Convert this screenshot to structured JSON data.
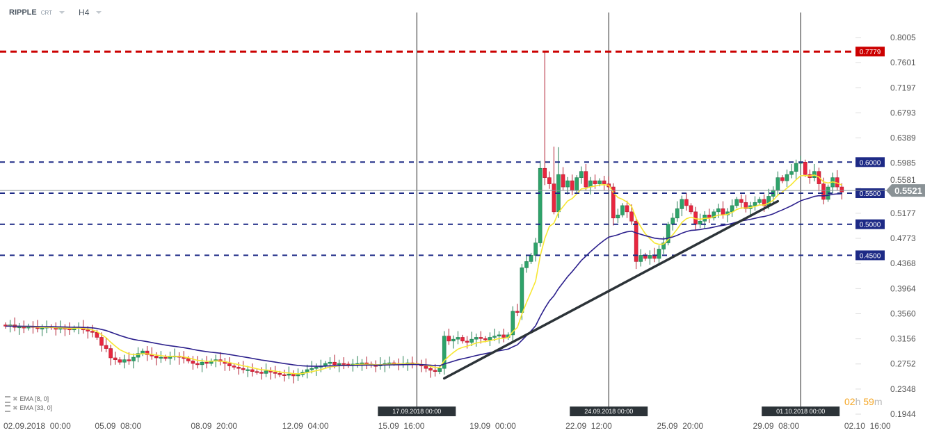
{
  "header": {
    "symbol": "RIPPLE",
    "category": "CRT",
    "timeframe": "H4"
  },
  "timer": {
    "hours": "02",
    "hours_unit": "h",
    "minutes": "59",
    "minutes_unit": "m"
  },
  "indicators": [
    {
      "label": "EMA",
      "params": "[8, 0]",
      "color": "#f7e733",
      "period": 8
    },
    {
      "label": "EMA",
      "params": "[33, 0]",
      "color": "#2b1f8c",
      "period": 33
    }
  ],
  "colors": {
    "up": "#2ea36a",
    "down": "#e8263f",
    "support": "#1d2a86",
    "resistance": "#cc0000",
    "trendline": "#2c3338",
    "current": "#8a9296"
  },
  "chart_data": {
    "type": "candlestick",
    "start": "2018-09-02 00:00",
    "interval": "H4",
    "closes": [
      0.336,
      0.338,
      0.334,
      0.335,
      0.333,
      0.336,
      0.334,
      0.332,
      0.333,
      0.335,
      0.334,
      0.331,
      0.333,
      0.332,
      0.33,
      0.333,
      0.334,
      0.33,
      0.328,
      0.326,
      0.318,
      0.305,
      0.3,
      0.285,
      0.282,
      0.278,
      0.282,
      0.28,
      0.286,
      0.292,
      0.296,
      0.29,
      0.288,
      0.285,
      0.286,
      0.284,
      0.287,
      0.288,
      0.286,
      0.284,
      0.28,
      0.276,
      0.274,
      0.278,
      0.276,
      0.28,
      0.282,
      0.279,
      0.276,
      0.272,
      0.27,
      0.268,
      0.266,
      0.266,
      0.263,
      0.262,
      0.26,
      0.264,
      0.262,
      0.26,
      0.258,
      0.257,
      0.259,
      0.256,
      0.258,
      0.262,
      0.266,
      0.268,
      0.27,
      0.272,
      0.276,
      0.278,
      0.274,
      0.276,
      0.275,
      0.273,
      0.275,
      0.276,
      0.277,
      0.275,
      0.273,
      0.272,
      0.274,
      0.276,
      0.277,
      0.276,
      0.275,
      0.276,
      0.277,
      0.276,
      0.274,
      0.272,
      0.268,
      0.265,
      0.263,
      0.268,
      0.32,
      0.312,
      0.315,
      0.318,
      0.312,
      0.31,
      0.315,
      0.318,
      0.316,
      0.314,
      0.318,
      0.32,
      0.322,
      0.318,
      0.322,
      0.36,
      0.358,
      0.43,
      0.44,
      0.45,
      0.47,
      0.59,
      0.575,
      0.565,
      0.52,
      0.58,
      0.56,
      0.57,
      0.555,
      0.575,
      0.585,
      0.56,
      0.57,
      0.565,
      0.57,
      0.565,
      0.56,
      0.51,
      0.515,
      0.53,
      0.52,
      0.505,
      0.44,
      0.45,
      0.445,
      0.45,
      0.445,
      0.46,
      0.47,
      0.5,
      0.51,
      0.525,
      0.54,
      0.53,
      0.52,
      0.5,
      0.505,
      0.515,
      0.51,
      0.52,
      0.525,
      0.515,
      0.52,
      0.53,
      0.54,
      0.535,
      0.525,
      0.53,
      0.535,
      0.54,
      0.53,
      0.545,
      0.555,
      0.575,
      0.57,
      0.58,
      0.585,
      0.598,
      0.6,
      0.58,
      0.575,
      0.585,
      0.565,
      0.54,
      0.56,
      0.575,
      0.56,
      0.552
    ],
    "high_overrides": {
      "118": 0.7779,
      "120": 0.625,
      "121": 0.624
    },
    "ylim": [
      0.1944,
      0.8005
    ],
    "y_ticks": [
      "0.8005",
      "0.7601",
      "0.7197",
      "0.6793",
      "0.6389",
      "0.5985",
      "0.5581",
      "0.5177",
      "0.4773",
      "0.4368",
      "0.3964",
      "0.3560",
      "0.3156",
      "0.2752",
      "0.2348",
      "0.1944"
    ],
    "x_ticks": [
      {
        "label": "02.09.2018  00:00",
        "bar": 0
      },
      {
        "label": "05.09  08:00",
        "bar": 20
      },
      {
        "label": "08.09  20:00",
        "bar": 41
      },
      {
        "label": "12.09  04:00",
        "bar": 61
      },
      {
        "label": "15.09  16:00",
        "bar": 82
      },
      {
        "label": "19.09  00:00",
        "bar": 102
      },
      {
        "label": "22.09  12:00",
        "bar": 123
      },
      {
        "label": "25.09  20:00",
        "bar": 143
      },
      {
        "label": "29.09  08:00",
        "bar": 164
      },
      {
        "label": "02.10  16:00",
        "bar": 184
      }
    ],
    "session_lines": [
      {
        "label": "17.09.2018 00:00",
        "bar": 90
      },
      {
        "label": "24.09.2018 00:00",
        "bar": 132
      },
      {
        "label": "01.10.2018 00:00",
        "bar": 174
      }
    ],
    "horizontal_levels": [
      {
        "label": "0.7779",
        "value": 0.7779,
        "kind": "resistance"
      },
      {
        "label": "0.6000",
        "value": 0.6,
        "kind": "support"
      },
      {
        "label": "0.5500",
        "value": 0.55,
        "kind": "support"
      },
      {
        "label": "0.5000",
        "value": 0.5,
        "kind": "support"
      },
      {
        "label": "0.4500",
        "value": 0.45,
        "kind": "support"
      }
    ],
    "current_price": {
      "label": "0.5521",
      "value": 0.5521
    },
    "trendline": {
      "from": {
        "bar": 96,
        "value": 0.252
      },
      "to": {
        "bar": 169,
        "value": 0.537
      }
    }
  }
}
